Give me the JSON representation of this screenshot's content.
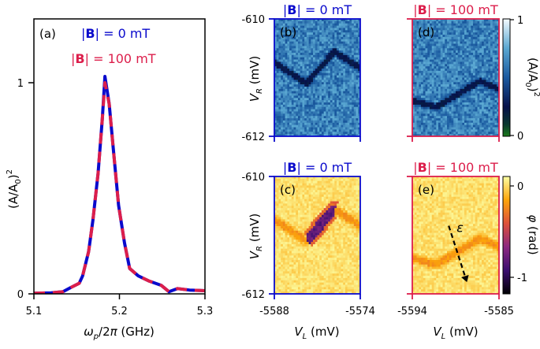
{
  "colors": {
    "zero_field": "#0a0acc",
    "high_field": "#dc1e4b",
    "axis": "#000000"
  },
  "chart_data": [
    {
      "id": "a",
      "type": "line",
      "panel_label": "(a)",
      "xlabel": "ω_p/2π (GHz)",
      "ylabel": "(A/A0)^2",
      "xlim": [
        5.1,
        5.3
      ],
      "ylim": [
        0,
        1.0
      ],
      "xticks": [
        "5.1",
        "5.2",
        "5.3"
      ],
      "xtick_values": [
        5.1,
        5.2,
        5.3
      ],
      "yticks": [
        "0",
        "1"
      ],
      "ytick_values": [
        0,
        1
      ],
      "grid": false,
      "annotations": [
        {
          "text_prefix": "|",
          "text_bold": "B",
          "text_suffix": "| = 0 mT",
          "color": "#0a0acc"
        },
        {
          "text_prefix": "|",
          "text_bold": "B",
          "text_suffix": "| = 100 mT",
          "color": "#dc1e4b"
        }
      ],
      "x": [
        5.1,
        5.12,
        5.134,
        5.143,
        5.153,
        5.157,
        5.164,
        5.169,
        5.175,
        5.18,
        5.183,
        5.188,
        5.193,
        5.199,
        5.206,
        5.212,
        5.222,
        5.235,
        5.249,
        5.258,
        5.268,
        5.282,
        5.3
      ],
      "series": [
        {
          "name": "|B| = 0 mT",
          "color": "#0a0acc",
          "style": "solid",
          "values": [
            0.003,
            0.005,
            0.01,
            0.03,
            0.05,
            0.085,
            0.2,
            0.35,
            0.57,
            0.83,
            1.03,
            0.9,
            0.68,
            0.42,
            0.24,
            0.12,
            0.085,
            0.06,
            0.04,
            0.01,
            0.025,
            0.018,
            0.015
          ]
        },
        {
          "name": "|B| = 100 mT",
          "color": "#dc1e4b",
          "style": "dashed",
          "values": [
            0.003,
            0.005,
            0.01,
            0.03,
            0.05,
            0.085,
            0.2,
            0.35,
            0.57,
            0.83,
            1.0,
            0.9,
            0.68,
            0.42,
            0.24,
            0.12,
            0.085,
            0.06,
            0.04,
            0.01,
            0.025,
            0.018,
            0.015
          ]
        }
      ]
    },
    {
      "id": "b",
      "type": "heatmap",
      "panel_label": "(b)",
      "title_prefix": "|",
      "title_bold": "B",
      "title_suffix": "| = 0 mT",
      "title_color": "#0a0acc",
      "quantity": "(A/A0)^2",
      "ylabel": "V_R (mV)",
      "ylim": [
        -612,
        -610
      ],
      "yticks": [
        "-610",
        "-612"
      ],
      "xlim": [
        -5588,
        -5574
      ],
      "background_level": 0.55,
      "feature_path_fraction": [
        [
          0.0,
          0.37
        ],
        [
          0.37,
          0.55
        ],
        [
          0.7,
          0.28
        ],
        [
          1.0,
          0.42
        ]
      ],
      "feature_level": 0.1
    },
    {
      "id": "c",
      "type": "heatmap",
      "panel_label": "(c)",
      "title_prefix": "|",
      "title_bold": "B",
      "title_suffix": "| = 0 mT",
      "title_color": "#0a0acc",
      "quantity": "φ (rad)",
      "ylabel": "V_R (mV)",
      "xlabel": "V_L (mV)",
      "ylim": [
        -612,
        -610
      ],
      "yticks": [
        "-610",
        "-612"
      ],
      "xlim": [
        -5588,
        -5574
      ],
      "xticks": [
        "-5588",
        "-5574"
      ],
      "background_level": 0.0,
      "feature_path_fraction": [
        [
          0.0,
          0.37
        ],
        [
          0.37,
          0.55
        ],
        [
          0.7,
          0.28
        ],
        [
          1.0,
          0.42
        ]
      ],
      "feature_strong_segment_level": -1.1,
      "feature_weak_level": -0.4
    },
    {
      "id": "d",
      "type": "heatmap",
      "panel_label": "(d)",
      "title_prefix": "|",
      "title_bold": "B",
      "title_suffix": "| = 100 mT",
      "title_color": "#dc1e4b",
      "quantity": "(A/A0)^2",
      "xlim": [
        -5594,
        -5585
      ],
      "ylim": [
        -612,
        -610
      ],
      "background_level": 0.55,
      "feature_path_fraction": [
        [
          0.0,
          0.7
        ],
        [
          0.28,
          0.75
        ],
        [
          0.78,
          0.53
        ],
        [
          1.0,
          0.6
        ]
      ],
      "feature_level": 0.1,
      "colorbar": {
        "label": "(A/A0)^2",
        "ticks": [
          "0",
          "1"
        ],
        "range": [
          0,
          1
        ]
      }
    },
    {
      "id": "e",
      "type": "heatmap",
      "panel_label": "(e)",
      "title_prefix": "|",
      "title_bold": "B",
      "title_suffix": "| = 100 mT",
      "title_color": "#dc1e4b",
      "quantity": "φ (rad)",
      "xlabel": "V_L (mV)",
      "xlim": [
        -5594,
        -5585
      ],
      "xticks": [
        "-5594",
        "-5585"
      ],
      "ylim": [
        -612,
        -610
      ],
      "background_level": 0.0,
      "feature_path_fraction": [
        [
          0.0,
          0.7
        ],
        [
          0.28,
          0.75
        ],
        [
          0.78,
          0.53
        ],
        [
          1.0,
          0.6
        ]
      ],
      "feature_level": -0.3,
      "arrow": {
        "label": "ε",
        "from_fraction": [
          0.42,
          0.42
        ],
        "to_fraction": [
          0.63,
          0.9
        ]
      },
      "colorbar": {
        "label": "φ (rad)",
        "ticks": [
          "0",
          "-1"
        ],
        "tick_values": [
          0,
          -1
        ],
        "range": [
          -1.1,
          0.1
        ]
      }
    }
  ]
}
